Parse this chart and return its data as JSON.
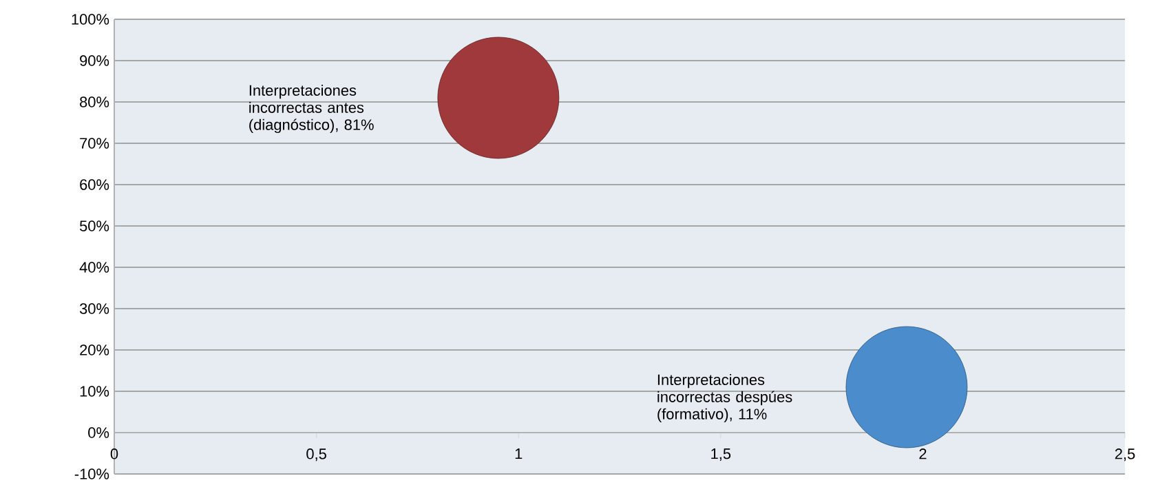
{
  "chart_data": {
    "type": "bubble",
    "x": [
      0.95,
      1.96
    ],
    "values": [
      81,
      11
    ],
    "sizes": [
      1,
      1
    ],
    "colors": [
      "#a0393b",
      "#4a8ccc"
    ],
    "xlim": [
      0,
      2.5
    ],
    "xticks": [
      0,
      {
        "value": 0.5,
        "label": "0,5"
      },
      1,
      {
        "value": 1.5,
        "label": "1,5"
      },
      2,
      {
        "value": 2.5,
        "label": "2,5"
      }
    ],
    "ylim": [
      -10,
      100
    ],
    "yticks": [
      {
        "value": -10,
        "label": "-10%"
      },
      {
        "value": 0,
        "label": "0%"
      },
      {
        "value": 10,
        "label": "10%"
      },
      {
        "value": 20,
        "label": "20%"
      },
      {
        "value": 30,
        "label": "30%"
      },
      {
        "value": 40,
        "label": "40%"
      },
      {
        "value": 50,
        "label": "50%"
      },
      {
        "value": 60,
        "label": "60%"
      },
      {
        "value": 70,
        "label": "70%"
      },
      {
        "value": 80,
        "label": "80%"
      },
      {
        "value": 90,
        "label": "90%"
      },
      {
        "value": 100,
        "label": "100%"
      }
    ],
    "grid": "y",
    "annotations": [
      "Interpretaciones incorrectas antes (diagnóstico), 81%",
      "Interpretaciones incorrectas despúes (formativo), 11%"
    ]
  }
}
